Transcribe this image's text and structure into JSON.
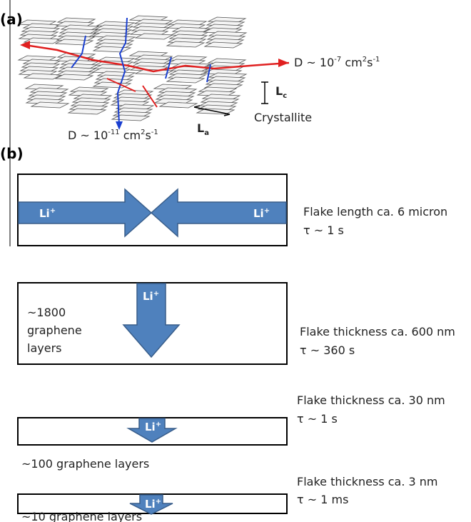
{
  "panel_a": {
    "label": "(a)",
    "diffusion_in_plane": [
      "D ~ 10",
      "-7",
      " cm",
      "2",
      "s",
      "-1"
    ],
    "diffusion_cross": [
      "D ~ 10",
      "-11",
      " cm",
      "2",
      "s",
      "-1"
    ],
    "lc": [
      "L",
      "c"
    ],
    "la": [
      "L",
      "a"
    ],
    "crystallite": "Crystallite"
  },
  "panel_b": {
    "label": "(b)",
    "cases": [
      {
        "ions": [
          [
            "Li",
            "+"
          ],
          [
            "Li",
            "+"
          ]
        ],
        "description": "Flake length ca. 6 micron",
        "time": "τ ~ 1 s"
      },
      {
        "ions": [
          [
            "Li",
            "+"
          ]
        ],
        "layers": [
          "~1800",
          "graphene",
          "layers"
        ],
        "description": "Flake thickness ca. 600 nm",
        "time": "τ ~ 360 s"
      },
      {
        "ions": [
          [
            "Li",
            "+"
          ]
        ],
        "layers": [
          "~100 graphene layers"
        ],
        "description": "Flake thickness ca. 30 nm",
        "time": "τ ~ 1 s"
      },
      {
        "ions": [
          [
            "Li",
            "+"
          ]
        ],
        "layers": [
          "~10 graphene layers"
        ],
        "description": "Flake thickness ca. 3 nm",
        "time": "τ ~ 1 ms"
      }
    ]
  }
}
